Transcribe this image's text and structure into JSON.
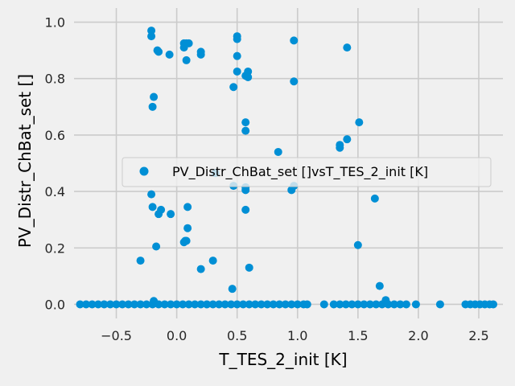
{
  "chart_data": {
    "type": "scatter",
    "title": "",
    "xlabel": "T_TES_2_init [K]",
    "ylabel": "PV_Distr_ChBat_set []",
    "xlim": [
      -0.85,
      2.7
    ],
    "ylim": [
      -0.05,
      1.05
    ],
    "xticks": [
      -0.5,
      0.0,
      0.5,
      1.0,
      1.5,
      2.0,
      2.5
    ],
    "xtick_labels": [
      "−0.5",
      "0.0",
      "0.5",
      "1.0",
      "1.5",
      "2.0",
      "2.5"
    ],
    "yticks": [
      0.0,
      0.2,
      0.4,
      0.6,
      0.8,
      1.0
    ],
    "ytick_labels": [
      "0.0",
      "0.2",
      "0.4",
      "0.6",
      "0.8",
      "1.0"
    ],
    "grid": true,
    "legend_position": "center-right",
    "marker_color": "#008fd5",
    "series": [
      {
        "name": "PV_Distr_ChBat_set []vsT_TES_2_init [K]",
        "points": [
          [
            -0.21,
            0.97
          ],
          [
            -0.21,
            0.95
          ],
          [
            -0.16,
            0.9
          ],
          [
            -0.15,
            0.895
          ],
          [
            -0.06,
            0.885
          ],
          [
            0.06,
            0.925
          ],
          [
            0.06,
            0.91
          ],
          [
            0.08,
            0.925
          ],
          [
            0.1,
            0.925
          ],
          [
            0.08,
            0.865
          ],
          [
            0.2,
            0.895
          ],
          [
            0.2,
            0.885
          ],
          [
            0.5,
            0.95
          ],
          [
            0.5,
            0.94
          ],
          [
            0.5,
            0.88
          ],
          [
            0.5,
            0.825
          ],
          [
            0.57,
            0.81
          ],
          [
            0.59,
            0.825
          ],
          [
            0.59,
            0.805
          ],
          [
            0.47,
            0.77
          ],
          [
            0.97,
            0.935
          ],
          [
            0.97,
            0.79
          ],
          [
            1.41,
            0.91
          ],
          [
            -0.19,
            0.735
          ],
          [
            -0.2,
            0.7
          ],
          [
            0.57,
            0.645
          ],
          [
            0.57,
            0.615
          ],
          [
            1.51,
            0.645
          ],
          [
            1.41,
            0.585
          ],
          [
            1.35,
            0.565
          ],
          [
            1.35,
            0.555
          ],
          [
            0.84,
            0.54
          ],
          [
            0.97,
            0.42
          ],
          [
            0.95,
            0.405
          ],
          [
            0.32,
            0.465
          ],
          [
            0.47,
            0.42
          ],
          [
            0.57,
            0.415
          ],
          [
            0.57,
            0.405
          ],
          [
            -0.21,
            0.39
          ],
          [
            1.64,
            0.375
          ],
          [
            -0.2,
            0.345
          ],
          [
            -0.13,
            0.335
          ],
          [
            -0.15,
            0.32
          ],
          [
            -0.05,
            0.32
          ],
          [
            0.09,
            0.345
          ],
          [
            0.57,
            0.335
          ],
          [
            0.09,
            0.27
          ],
          [
            0.07,
            0.225
          ],
          [
            0.08,
            0.225
          ],
          [
            0.06,
            0.22
          ],
          [
            -0.17,
            0.205
          ],
          [
            1.5,
            0.21
          ],
          [
            -0.3,
            0.155
          ],
          [
            0.3,
            0.155
          ],
          [
            0.2,
            0.125
          ],
          [
            0.6,
            0.13
          ],
          [
            0.46,
            0.055
          ],
          [
            1.68,
            0.065
          ],
          [
            -0.19,
            0.012
          ],
          [
            1.73,
            0.015
          ],
          [
            -0.8,
            0
          ],
          [
            -0.75,
            0
          ],
          [
            -0.7,
            0
          ],
          [
            -0.65,
            0
          ],
          [
            -0.6,
            0
          ],
          [
            -0.55,
            0
          ],
          [
            -0.5,
            0
          ],
          [
            -0.45,
            0
          ],
          [
            -0.4,
            0
          ],
          [
            -0.35,
            0
          ],
          [
            -0.3,
            0
          ],
          [
            -0.25,
            0
          ],
          [
            -0.2,
            0
          ],
          [
            -0.15,
            0
          ],
          [
            -0.1,
            0
          ],
          [
            -0.05,
            0
          ],
          [
            0.0,
            0
          ],
          [
            0.05,
            0
          ],
          [
            0.1,
            0
          ],
          [
            0.15,
            0
          ],
          [
            0.2,
            0
          ],
          [
            0.25,
            0
          ],
          [
            0.3,
            0
          ],
          [
            0.35,
            0
          ],
          [
            0.4,
            0
          ],
          [
            0.45,
            0
          ],
          [
            0.5,
            0
          ],
          [
            0.55,
            0
          ],
          [
            0.6,
            0
          ],
          [
            0.65,
            0
          ],
          [
            0.7,
            0
          ],
          [
            0.75,
            0
          ],
          [
            0.8,
            0
          ],
          [
            0.85,
            0
          ],
          [
            0.9,
            0
          ],
          [
            0.95,
            0
          ],
          [
            1.0,
            0
          ],
          [
            1.05,
            0
          ],
          [
            1.08,
            0
          ],
          [
            1.22,
            0
          ],
          [
            1.3,
            0
          ],
          [
            1.35,
            0
          ],
          [
            1.4,
            0
          ],
          [
            1.45,
            0
          ],
          [
            1.5,
            0
          ],
          [
            1.55,
            0
          ],
          [
            1.6,
            0
          ],
          [
            1.65,
            0
          ],
          [
            1.7,
            0
          ],
          [
            1.75,
            0
          ],
          [
            1.8,
            0
          ],
          [
            1.85,
            0
          ],
          [
            1.9,
            0
          ],
          [
            1.98,
            0
          ],
          [
            2.18,
            0
          ],
          [
            2.39,
            0
          ],
          [
            2.43,
            0
          ],
          [
            2.47,
            0
          ],
          [
            2.51,
            0
          ],
          [
            2.55,
            0
          ],
          [
            2.59,
            0
          ],
          [
            2.62,
            0
          ]
        ]
      }
    ]
  }
}
